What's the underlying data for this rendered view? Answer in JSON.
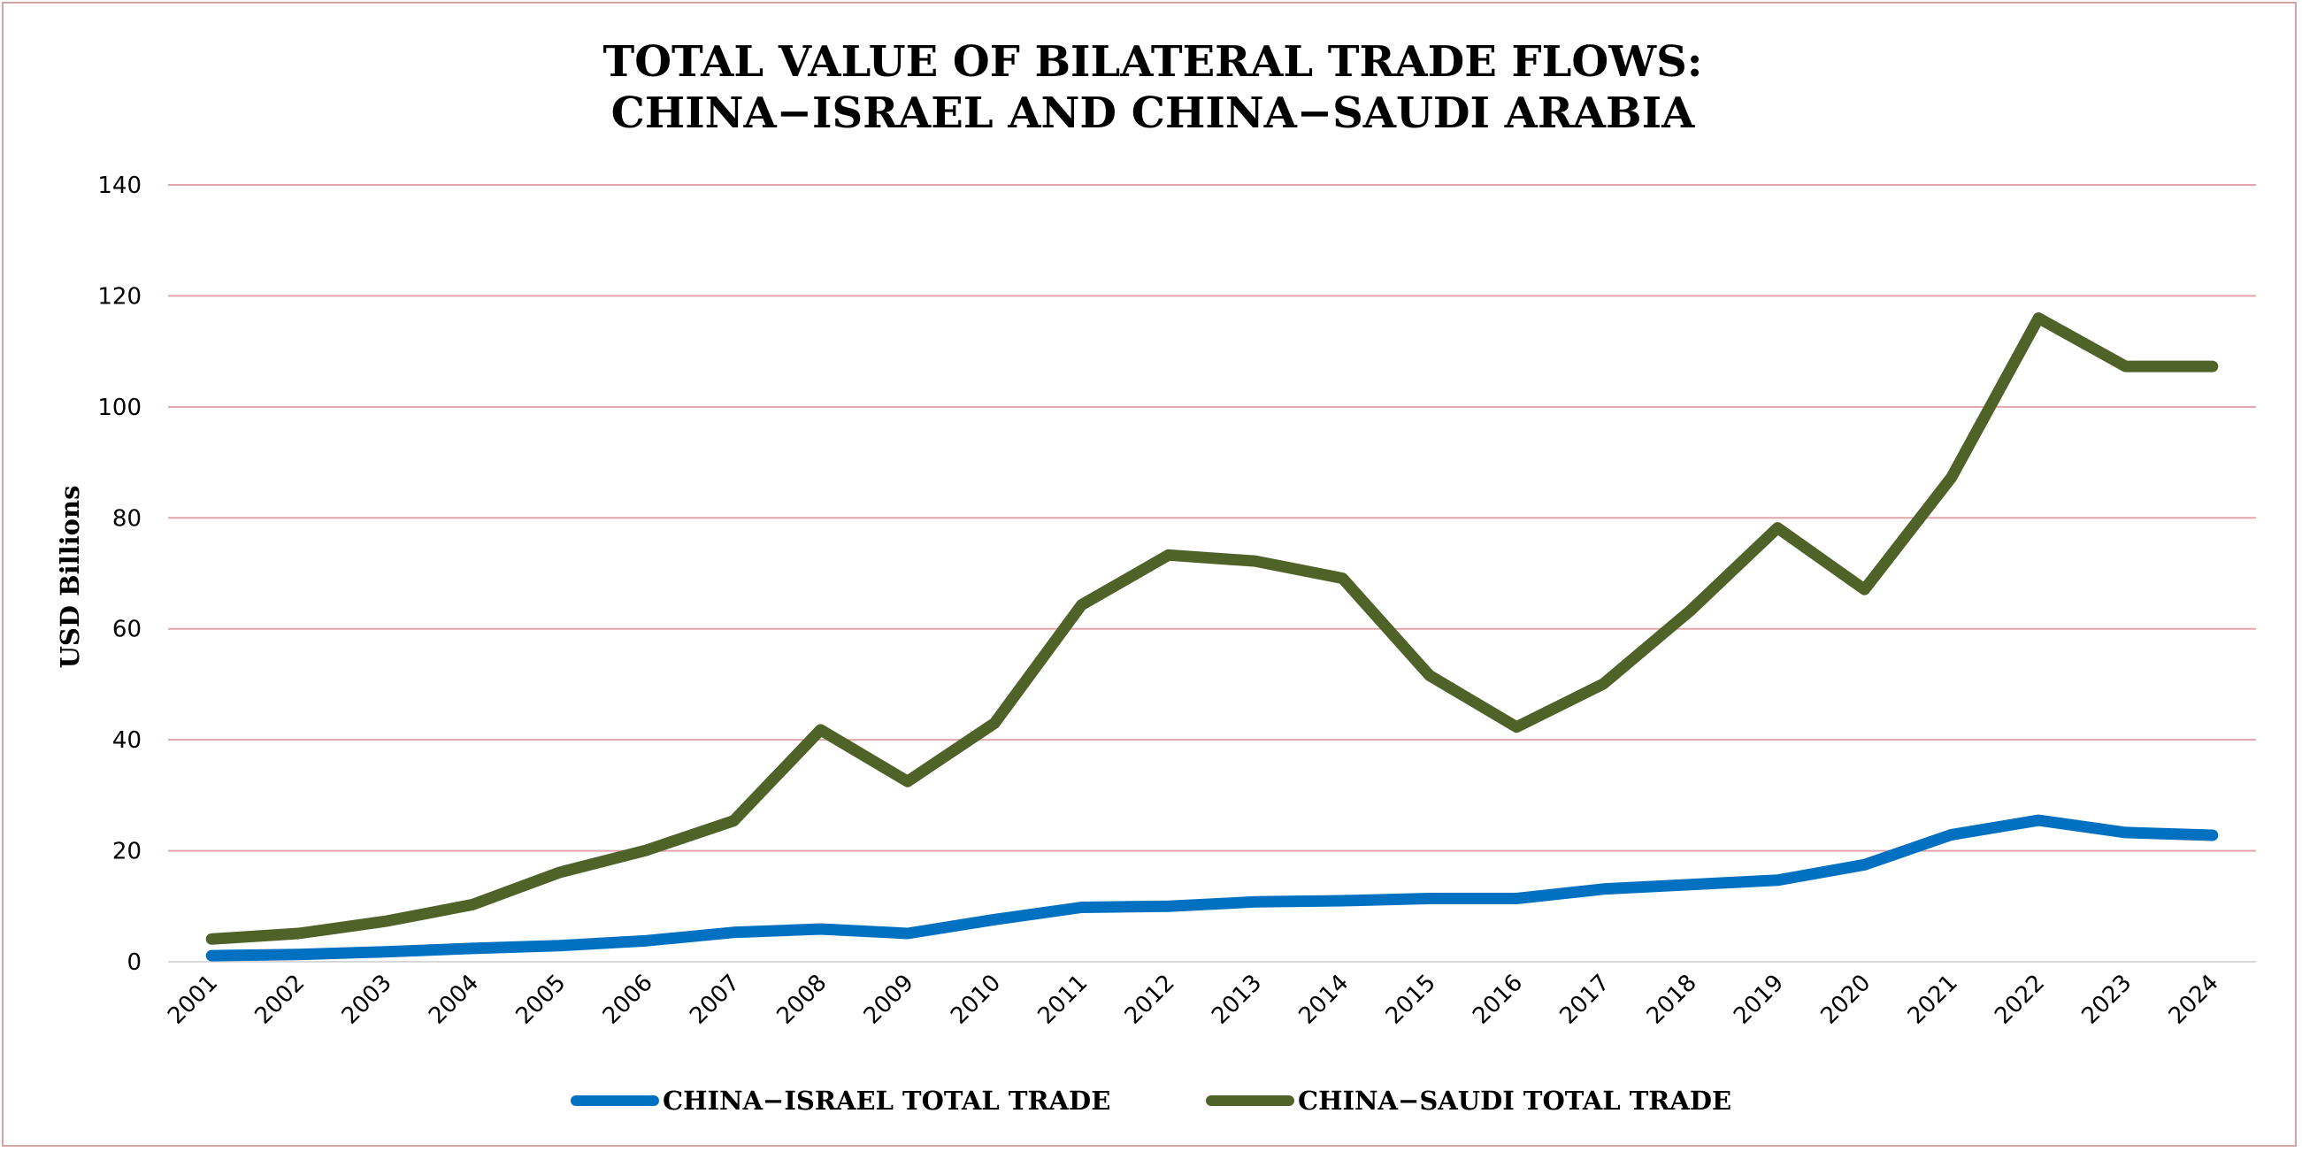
{
  "chart_data": {
    "type": "line",
    "title_lines": [
      "TOTAL VALUE OF BILATERAL TRADE FLOWS:",
      "CHINA−ISRAEL AND CHINA−SAUDI ARABIA"
    ],
    "ylabel": "USD Billions",
    "xlabel": "",
    "ylim": [
      0,
      140
    ],
    "yticks": [
      0,
      20,
      40,
      60,
      80,
      100,
      120,
      140
    ],
    "grid": "horizontal",
    "legend_position": "bottom",
    "x": [
      "2001",
      "2002",
      "2003",
      "2004",
      "2005",
      "2006",
      "2007",
      "2008",
      "2009",
      "2010",
      "2011",
      "2012",
      "2013",
      "2014",
      "2015",
      "2016",
      "2017",
      "2018",
      "2019",
      "2020",
      "2021",
      "2022",
      "2023",
      "2024"
    ],
    "series": [
      {
        "name": "CHINA−ISRAEL TOTAL TRADE",
        "color": "#0070c0",
        "values": [
          1.1,
          1.3,
          1.8,
          2.4,
          2.9,
          3.8,
          5.3,
          5.9,
          5.1,
          7.6,
          9.8,
          10.0,
          10.8,
          11.0,
          11.4,
          11.4,
          13.1,
          13.9,
          14.7,
          17.5,
          22.9,
          25.5,
          23.3,
          22.8
        ]
      },
      {
        "name": "CHINA−SAUDI TOTAL TRADE",
        "color": "#4f6228",
        "values": [
          4.1,
          5.1,
          7.3,
          10.3,
          16.1,
          20.1,
          25.4,
          41.8,
          32.5,
          43.0,
          64.3,
          73.3,
          72.2,
          69.1,
          51.6,
          42.3,
          50.1,
          63.3,
          78.2,
          67.1,
          87.3,
          116.0,
          107.3,
          107.3
        ]
      }
    ]
  },
  "colors": {
    "gridline": "#e2a5ab",
    "baseline": "#d9d9d9",
    "frame": "#d4a5a5"
  }
}
